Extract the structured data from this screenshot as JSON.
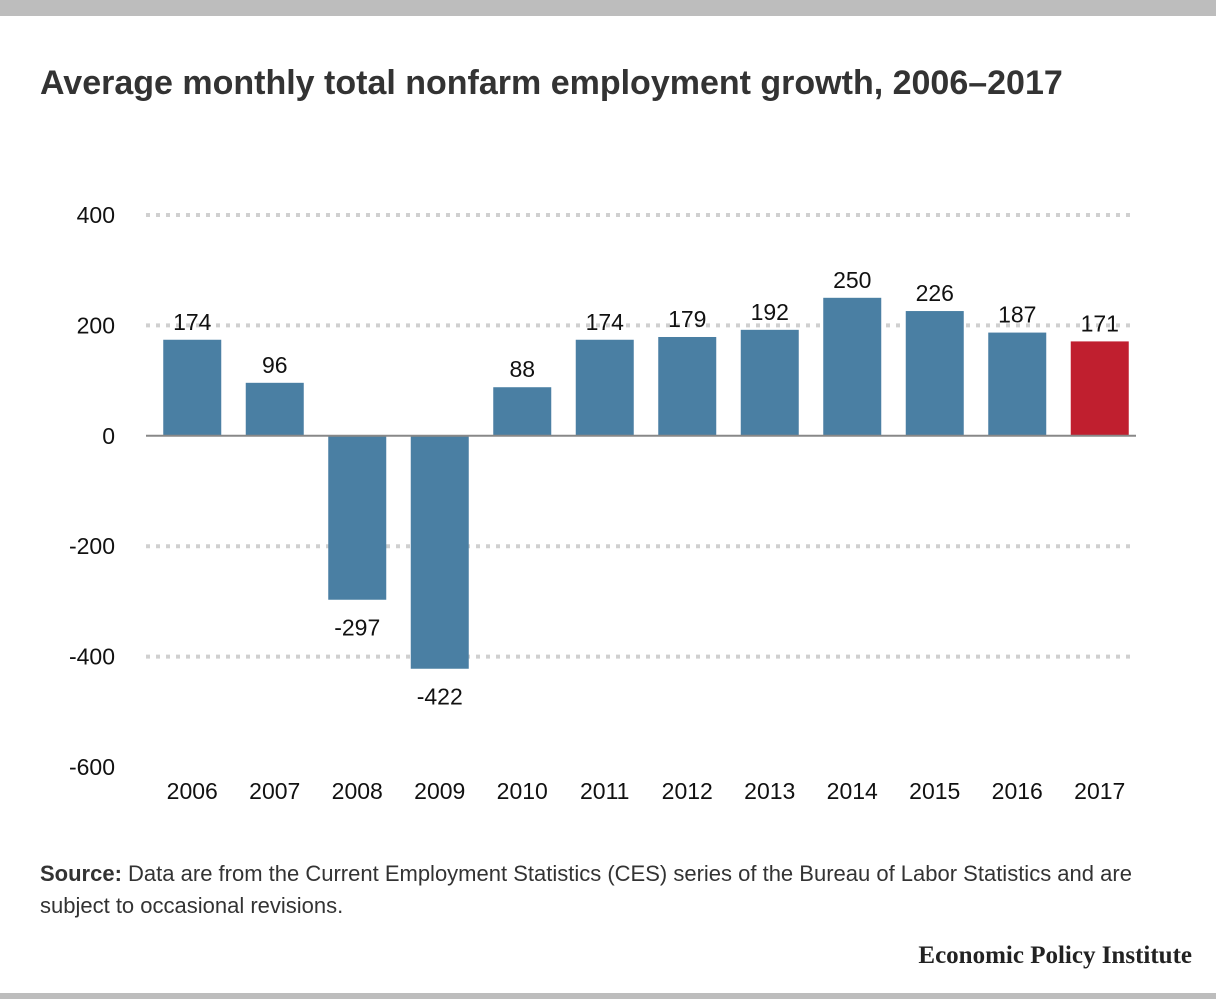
{
  "title": "Average monthly total nonfarm employment growth, 2006–2017",
  "source": {
    "label": "Source:",
    "text": "Data are from the Current Employment Statistics (CES) series of the Bureau of Labor Statistics and are subject to occasional revisions."
  },
  "brand": "Economic Policy Institute",
  "colors": {
    "bar": "#4a7fa3",
    "highlight": "#c01f2f",
    "grid": "#d0d0d0",
    "zero_line": "#888888"
  },
  "chart_data": {
    "type": "bar",
    "title": "Average monthly total nonfarm employment growth, 2006–2017",
    "xlabel": "",
    "ylabel": "",
    "categories": [
      "2006",
      "2007",
      "2008",
      "2009",
      "2010",
      "2011",
      "2012",
      "2013",
      "2014",
      "2015",
      "2016",
      "2017"
    ],
    "values": [
      174,
      96,
      -297,
      -422,
      88,
      174,
      179,
      192,
      250,
      226,
      187,
      171
    ],
    "highlighted_category": "2017",
    "ylim": [
      -600,
      400
    ],
    "yticks": [
      400,
      200,
      0,
      -200,
      -400,
      -600
    ],
    "grid": true,
    "legend": "none"
  }
}
